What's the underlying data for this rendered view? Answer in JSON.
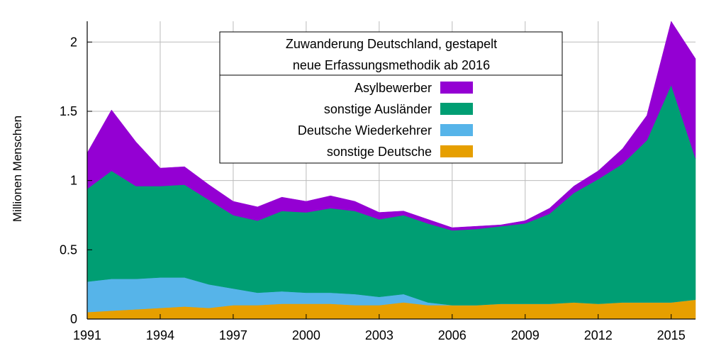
{
  "chart_data": {
    "type": "area",
    "stacked": true,
    "title": "Zuwanderung Deutschland, gestapelt",
    "subtitle": "neue Erfassungsmethodik ab 2016",
    "xlabel": "",
    "ylabel": "Millionen Menschen",
    "xlim": [
      1991,
      2016
    ],
    "ylim": [
      0,
      2.15
    ],
    "grid": true,
    "legend_position": "top-center",
    "x": [
      1991,
      1992,
      1993,
      1994,
      1995,
      1996,
      1997,
      1998,
      1999,
      2000,
      2001,
      2002,
      2003,
      2004,
      2005,
      2006,
      2007,
      2008,
      2009,
      2010,
      2011,
      2012,
      2013,
      2014,
      2015,
      2016
    ],
    "x_ticks": [
      1991,
      1994,
      1997,
      2000,
      2003,
      2006,
      2009,
      2012,
      2015
    ],
    "y_ticks": [
      0,
      0.5,
      1,
      1.5,
      2
    ],
    "x_tick_labels": [
      "1991",
      "1994",
      "1997",
      "2000",
      "2003",
      "2006",
      "2009",
      "2012",
      "2015"
    ],
    "y_tick_labels": [
      "0",
      "0.5",
      "1",
      "1.5",
      "2"
    ],
    "series": [
      {
        "name": "sonstige Deutsche",
        "color": "#e69f00",
        "values": [
          0.05,
          0.06,
          0.07,
          0.08,
          0.09,
          0.08,
          0.1,
          0.1,
          0.11,
          0.11,
          0.11,
          0.1,
          0.1,
          0.12,
          0.1,
          0.1,
          0.1,
          0.11,
          0.11,
          0.11,
          0.12,
          0.11,
          0.12,
          0.12,
          0.12,
          0.14
        ]
      },
      {
        "name": "Deutsche Wiederkehrer",
        "color": "#56b4e9",
        "values": [
          0.22,
          0.23,
          0.22,
          0.22,
          0.21,
          0.17,
          0.12,
          0.09,
          0.09,
          0.08,
          0.08,
          0.08,
          0.06,
          0.06,
          0.02,
          0.0,
          0.0,
          0.0,
          0.0,
          0.0,
          0.0,
          0.0,
          0.0,
          0.0,
          0.0,
          0.0
        ]
      },
      {
        "name": "sonstige Ausländer",
        "color": "#009e73",
        "values": [
          0.67,
          0.78,
          0.67,
          0.66,
          0.67,
          0.61,
          0.53,
          0.52,
          0.58,
          0.58,
          0.61,
          0.6,
          0.56,
          0.57,
          0.57,
          0.54,
          0.55,
          0.56,
          0.58,
          0.65,
          0.79,
          0.9,
          1.0,
          1.17,
          1.57,
          1.02
        ]
      },
      {
        "name": "Asylbewerber",
        "color": "#9400d3",
        "values": [
          0.26,
          0.44,
          0.32,
          0.13,
          0.13,
          0.11,
          0.1,
          0.1,
          0.1,
          0.08,
          0.09,
          0.07,
          0.05,
          0.03,
          0.03,
          0.02,
          0.02,
          0.01,
          0.02,
          0.04,
          0.05,
          0.06,
          0.11,
          0.18,
          0.46,
          0.72
        ]
      }
    ]
  }
}
